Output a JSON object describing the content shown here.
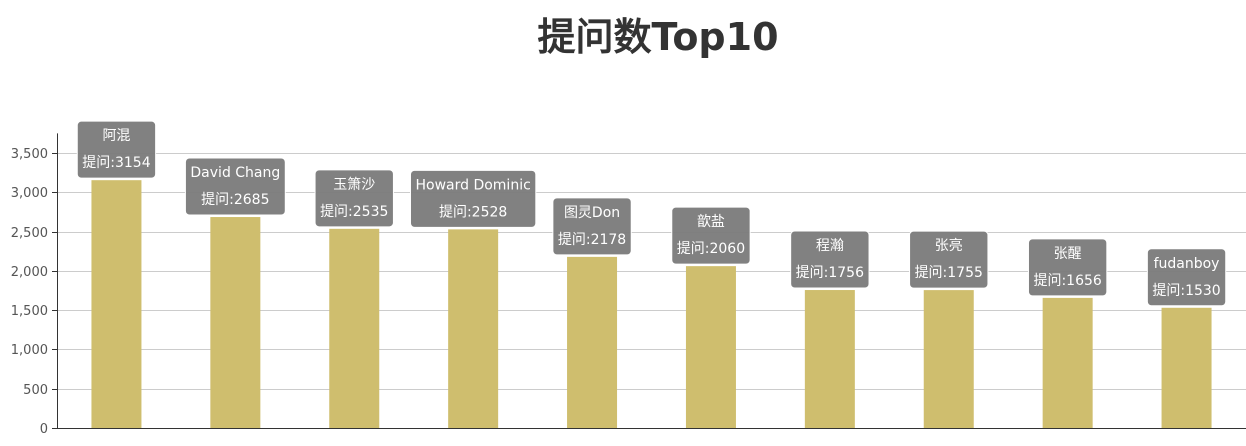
{
  "chart_data": {
    "type": "bar",
    "title": "提问数Top10",
    "categories": [
      "阿混",
      "David Chang",
      "玉箫沙",
      "Howard Dominic",
      "图灵Don",
      "歆盐",
      "程瀚",
      "张亮",
      "张醒",
      "fudanboy"
    ],
    "series": [
      {
        "values": [
          3154,
          2685,
          2535,
          2528,
          2178,
          2060,
          1756,
          1755,
          1656,
          1530
        ],
        "tooltip_labels": [
          "提问:3154",
          "提问:2685",
          "提问:2535",
          "提问:2528",
          "提问:2178",
          "提问:2060",
          "提问:1756",
          "提问:1755",
          "提问:1656",
          "提问:1530"
        ]
      }
    ],
    "ylim": [
      0,
      3750
    ],
    "yticks": [
      "0",
      "500",
      "1,000",
      "1,500",
      "2,000",
      "2,500",
      "3,000",
      "3,500"
    ],
    "ytick_values": [
      0,
      500,
      1000,
      1500,
      2000,
      2500,
      3000,
      3500
    ],
    "grid": true,
    "colors": {
      "bar": "#cfbe6e",
      "tooltip_bg": "#7a7a7a",
      "grid": "#cccccc",
      "axis": "#333333"
    }
  }
}
